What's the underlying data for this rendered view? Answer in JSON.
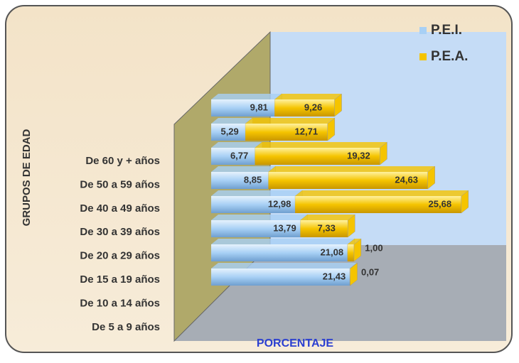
{
  "chart_data": {
    "type": "bar",
    "orientation": "horizontal",
    "stacked": true,
    "y_label": "GRUPOS DE EDAD",
    "x_label": "PORCENTAJE",
    "categories": [
      "De 60 y + años",
      "De 50 a 59 años",
      "De 40 a 49 años",
      "De 30 a 39 años",
      "De 20 a 29 años",
      "De 15 a 19 años",
      "De 10 a 14 años",
      "De 5 a 9 años"
    ],
    "series": [
      {
        "name": "P.E.I.",
        "color": "#a8d0f5",
        "values": [
          9.81,
          5.29,
          6.77,
          8.85,
          12.98,
          13.79,
          21.08,
          21.43
        ],
        "value_labels": [
          "9,81",
          "5,29",
          "6,77",
          "8,85",
          "12,98",
          "13,79",
          "21,08",
          "21,43"
        ]
      },
      {
        "name": "P.E.A.",
        "color": "#f5c400",
        "values": [
          9.26,
          12.71,
          19.32,
          24.63,
          25.68,
          7.33,
          1.0,
          0.07
        ],
        "value_labels": [
          "9,26",
          "12,71",
          "19,32",
          "24,63",
          "25,68",
          "7,33",
          "1,00",
          "0,07"
        ]
      }
    ]
  }
}
